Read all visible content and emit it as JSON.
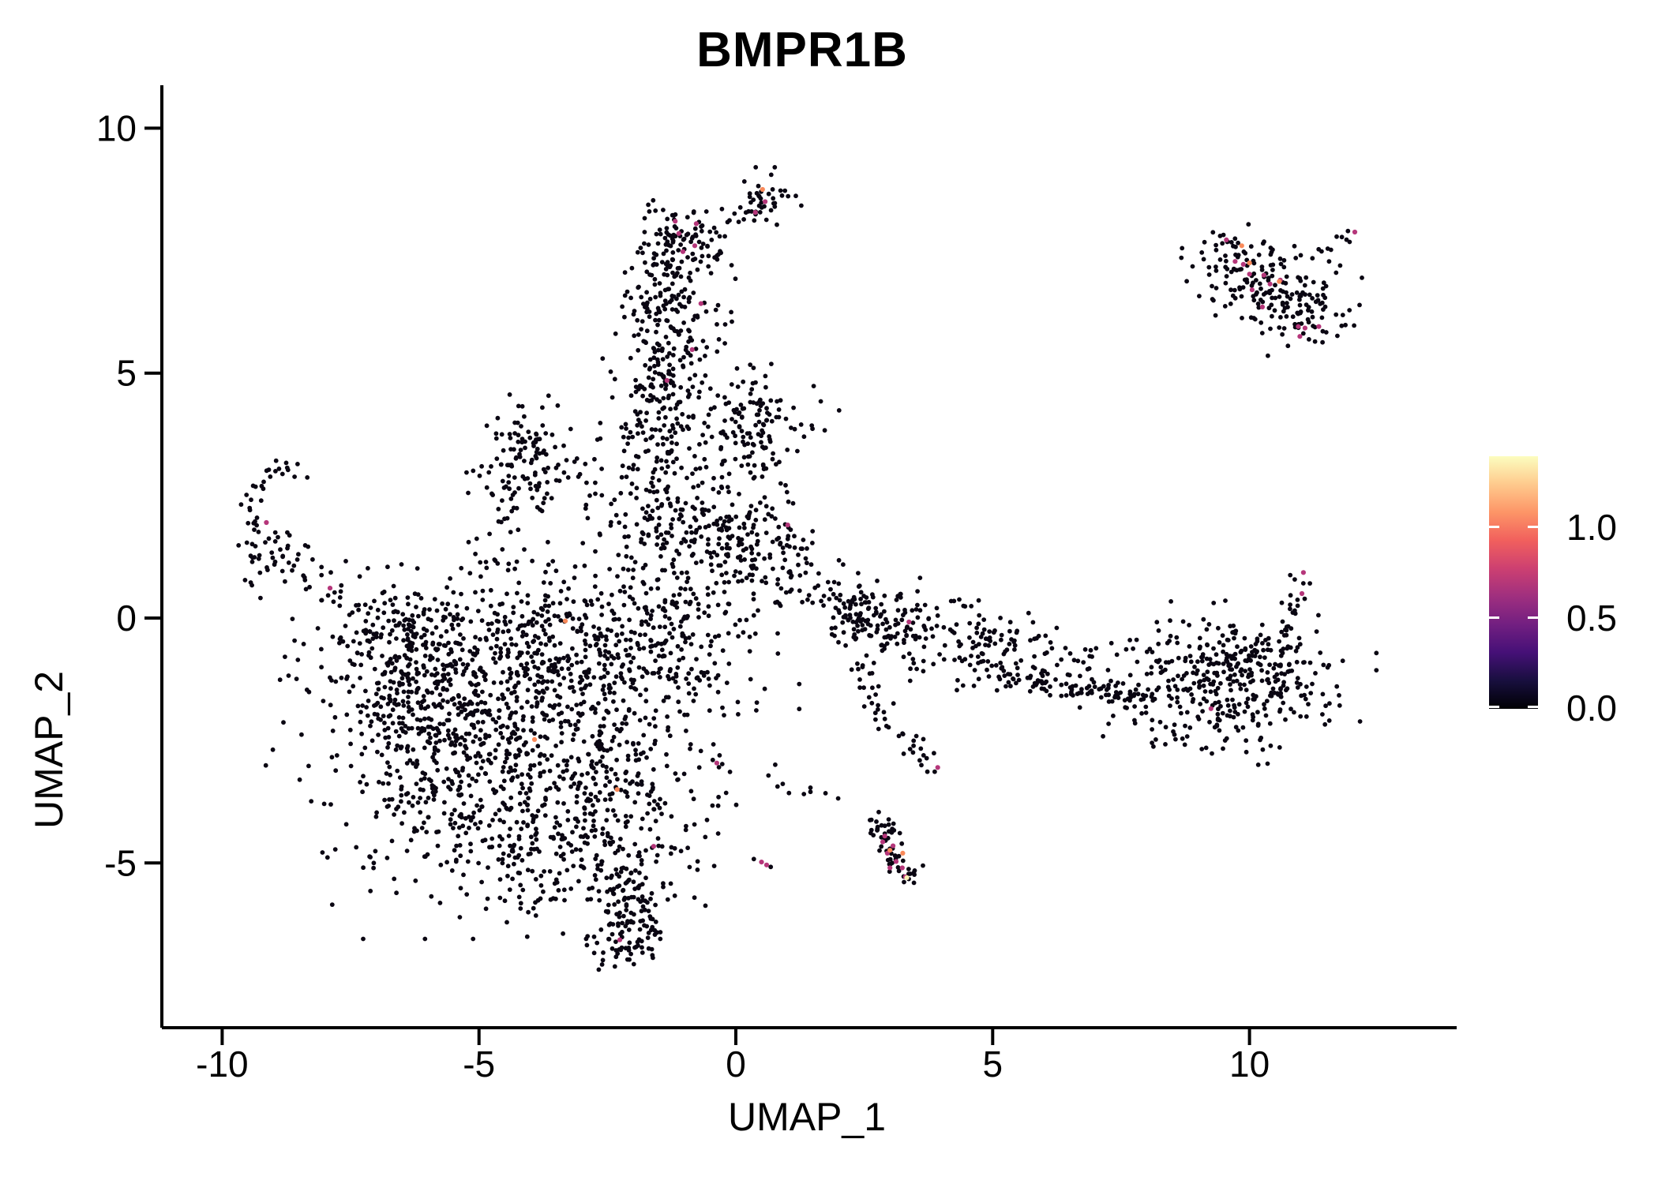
{
  "title": "BMPR1B",
  "axes": {
    "x_label": "UMAP_1",
    "y_label": "UMAP_2",
    "x_ticks": [
      "-10",
      "-5",
      "0",
      "5",
      "10"
    ],
    "y_ticks": [
      "-5",
      "0",
      "5",
      "10"
    ]
  },
  "legend": {
    "tick_labels": [
      "1.0",
      "0.5",
      "0.0"
    ],
    "tick_values": [
      1.0,
      0.5,
      0.0
    ],
    "colormap_name": "magma",
    "colormap": [
      "#000004",
      "#180f3e",
      "#451077",
      "#721f81",
      "#9f2f7f",
      "#cd4071",
      "#f1605d",
      "#fd9567",
      "#feca8d",
      "#fcfdbf"
    ]
  },
  "colors": {
    "point_black": "#0a0612",
    "point_mid": "#b5367a",
    "point_high": "#f98a5a",
    "point_top": "#fbf1b3",
    "axis": "#000000"
  },
  "chart_data": {
    "type": "scatter",
    "title": "BMPR1B",
    "xlabel": "UMAP_1",
    "ylabel": "UMAP_2",
    "xlim": [
      -11.2,
      14.0
    ],
    "ylim": [
      -8.4,
      10.9
    ],
    "x_tick_values": [
      -10,
      -5,
      0,
      5,
      10
    ],
    "y_tick_values": [
      -5,
      0,
      5,
      10
    ],
    "grid": false,
    "legend_position": "right",
    "color_scale": {
      "name": "magma",
      "min": 0.0,
      "max": 1.39,
      "ticks": [
        0.0,
        0.5,
        1.0
      ]
    },
    "clusters": [
      {
        "name": "left-hook-arc",
        "t": "p",
        "pts": [
          [
            -8.4,
            2.95
          ],
          [
            -8.75,
            3.12
          ],
          [
            -9.15,
            2.85
          ],
          [
            -9.42,
            2.3
          ],
          [
            -9.3,
            1.75
          ]
        ],
        "n": 30,
        "j": 0.1
      },
      {
        "name": "left-hook-blob",
        "t": "g",
        "c": [
          -9.05,
          1.32
        ],
        "s": [
          0.4,
          0.28
        ],
        "n": 38
      },
      {
        "name": "left-hook-chain",
        "t": "p",
        "pts": [
          [
            -8.85,
            1.15
          ],
          [
            -8.2,
            0.85
          ],
          [
            -7.6,
            0.35
          ],
          [
            -7.05,
            0.08
          ]
        ],
        "n": 26,
        "j": 0.16
      },
      {
        "name": "mass-bridge",
        "t": "g",
        "c": [
          -6.55,
          -0.4
        ],
        "s": [
          0.45,
          0.38
        ],
        "n": 45
      },
      {
        "name": "mass-core",
        "t": "g",
        "c": [
          -4.8,
          -2.5
        ],
        "s": [
          1.65,
          1.5
        ],
        "n": 820
      },
      {
        "name": "mass-top",
        "t": "g",
        "c": [
          -4.45,
          -0.55
        ],
        "s": [
          1.95,
          0.7
        ],
        "n": 330
      },
      {
        "name": "mass-left",
        "t": "g",
        "c": [
          -6.3,
          -1.9
        ],
        "s": [
          0.7,
          1.1
        ],
        "n": 150
      },
      {
        "name": "mass-right",
        "t": "g",
        "c": [
          -1.6,
          -0.75
        ],
        "s": [
          1.05,
          0.9
        ],
        "n": 250
      },
      {
        "name": "mass-lower",
        "t": "g",
        "c": [
          -2.65,
          -4.0
        ],
        "s": [
          1.05,
          0.95
        ],
        "n": 250
      },
      {
        "name": "mass-fringe",
        "t": "g",
        "c": [
          -4.15,
          -4.95
        ],
        "s": [
          0.85,
          0.55
        ],
        "n": 80
      },
      {
        "name": "mass-tail",
        "t": "p",
        "pts": [
          [
            -2.3,
            -5.1
          ],
          [
            -1.95,
            -5.75
          ],
          [
            -1.85,
            -6.3
          ],
          [
            -2.15,
            -6.85
          ],
          [
            -2.65,
            -6.7
          ]
        ],
        "n": 130,
        "j": 0.28
      },
      {
        "name": "kite",
        "t": "g",
        "c": [
          -4.05,
          3.3
        ],
        "s": [
          0.46,
          0.55
        ],
        "n": 115
      },
      {
        "name": "kite-chain",
        "t": "p",
        "pts": [
          [
            -4.4,
            2.3
          ],
          [
            -4.75,
            1.55
          ],
          [
            -5.0,
            0.95
          ]
        ],
        "n": 20,
        "j": 0.2
      },
      {
        "name": "kite-right",
        "t": "p",
        "pts": [
          [
            -3.4,
            3.2
          ],
          [
            -2.6,
            2.45
          ]
        ],
        "n": 14,
        "j": 0.28
      },
      {
        "name": "flame-knob",
        "t": "g",
        "c": [
          0.58,
          8.5
        ],
        "s": [
          0.28,
          0.26
        ],
        "n": 38
      },
      {
        "name": "flame-wisp",
        "t": "p",
        "pts": [
          [
            0.3,
            8.4
          ],
          [
            -0.25,
            8.05
          ],
          [
            -0.48,
            7.85
          ]
        ],
        "n": 12,
        "j": 0.12
      },
      {
        "name": "flame-upper",
        "t": "g",
        "c": [
          -1.05,
          7.7
        ],
        "s": [
          0.48,
          0.42
        ],
        "n": 105
      },
      {
        "name": "flame-neck",
        "t": "g",
        "c": [
          -1.35,
          6.45
        ],
        "s": [
          0.4,
          0.52
        ],
        "n": 85
      },
      {
        "name": "flame-column",
        "t": "g",
        "c": [
          -1.42,
          5.05
        ],
        "s": [
          0.45,
          0.72
        ],
        "n": 135
      },
      {
        "name": "flame-flare",
        "t": "g",
        "c": [
          -1.35,
          3.6
        ],
        "s": [
          0.58,
          0.58
        ],
        "n": 95
      },
      {
        "name": "flame-lower",
        "t": "p",
        "pts": [
          [
            -1.5,
            2.95
          ],
          [
            -1.35,
            2.2
          ],
          [
            -1.2,
            1.6
          ]
        ],
        "n": 30,
        "j": 0.4
      },
      {
        "name": "flame-right-sparse",
        "t": "g",
        "c": [
          -0.6,
          5.9
        ],
        "s": [
          0.5,
          0.6
        ],
        "n": 18
      },
      {
        "name": "east-blob",
        "t": "g",
        "c": [
          0.38,
          3.65
        ],
        "s": [
          0.5,
          0.44
        ],
        "n": 95
      },
      {
        "name": "east-blob-top",
        "t": "g",
        "c": [
          0.52,
          4.55
        ],
        "s": [
          0.42,
          0.38
        ],
        "n": 26
      },
      {
        "name": "delta",
        "t": "g",
        "c": [
          -0.8,
          1.65
        ],
        "s": [
          1.12,
          0.72
        ],
        "n": 230
      },
      {
        "name": "delta-east",
        "t": "g",
        "c": [
          0.42,
          1.35
        ],
        "s": [
          0.6,
          0.55
        ],
        "n": 90
      },
      {
        "name": "delta-band-bridge",
        "t": "p",
        "pts": [
          [
            1.3,
            0.75
          ],
          [
            1.85,
            0.45
          ],
          [
            2.35,
            0.22
          ]
        ],
        "n": 22,
        "j": 0.28
      },
      {
        "name": "band-tip",
        "t": "g",
        "c": [
          2.42,
          0.12
        ],
        "s": [
          0.3,
          0.28
        ],
        "n": 40
      },
      {
        "name": "band-left",
        "t": "g",
        "c": [
          3.1,
          -0.15
        ],
        "s": [
          0.66,
          0.46
        ],
        "n": 135
      },
      {
        "name": "band-ring",
        "t": "g",
        "c": [
          4.95,
          -0.6
        ],
        "s": [
          0.48,
          0.4
        ],
        "n": 75
      },
      {
        "name": "band-thin",
        "t": "p",
        "pts": [
          [
            5.1,
            -1.1
          ],
          [
            6.5,
            -1.45
          ],
          [
            8.0,
            -1.6
          ]
        ],
        "n": 95,
        "j": 0.13
      },
      {
        "name": "band-upper-scatter",
        "t": "p",
        "pts": [
          [
            5.6,
            -0.65
          ],
          [
            7.4,
            -1.1
          ]
        ],
        "n": 35,
        "j": 0.28
      },
      {
        "name": "band-right",
        "t": "g",
        "c": [
          9.5,
          -1.4
        ],
        "s": [
          1.1,
          0.65
        ],
        "n": 290
      },
      {
        "name": "band-right-dense",
        "t": "g",
        "c": [
          10.35,
          -1.15
        ],
        "s": [
          0.5,
          0.45
        ],
        "n": 80
      },
      {
        "name": "band-top-scatter",
        "t": "p",
        "pts": [
          [
            8.0,
            -0.55
          ],
          [
            10.6,
            -0.75
          ]
        ],
        "n": 30,
        "j": 0.28
      },
      {
        "name": "band-arm-up",
        "t": "p",
        "pts": [
          [
            10.6,
            -0.5
          ],
          [
            10.9,
            0.3
          ],
          [
            11.0,
            0.8
          ]
        ],
        "n": 22,
        "j": 0.12
      },
      {
        "name": "band-below-scatter",
        "t": "p",
        "pts": [
          [
            8.0,
            -2.45
          ],
          [
            10.3,
            -2.8
          ]
        ],
        "n": 16,
        "j": 0.22
      },
      {
        "name": "band-down-chain",
        "t": "p",
        "pts": [
          [
            2.5,
            -1.05
          ],
          [
            2.7,
            -1.9
          ],
          [
            3.4,
            -2.6
          ],
          [
            3.93,
            -3.05
          ]
        ],
        "n": 40,
        "j": 0.15
      },
      {
        "name": "south-streak",
        "t": "p",
        "pts": [
          [
            2.7,
            -4.0
          ],
          [
            2.95,
            -4.55
          ],
          [
            3.2,
            -5.0
          ],
          [
            3.42,
            -5.35
          ]
        ],
        "n": 58,
        "j": 0.12
      },
      {
        "name": "lone-pair",
        "t": "pts",
        "pts": [
          [
            0.35,
            -4.92
          ],
          [
            0.68,
            -5.08
          ]
        ]
      },
      {
        "name": "diag-chain",
        "t": "p",
        "pts": [
          [
            -0.75,
            -2.7
          ],
          [
            0.2,
            -3.1
          ],
          [
            0.9,
            -3.3
          ],
          [
            1.6,
            -3.42
          ],
          [
            2.2,
            -3.5
          ]
        ],
        "n": 16,
        "j": 0.18
      },
      {
        "name": "topright-upper",
        "t": "g",
        "c": [
          9.95,
          7.15
        ],
        "s": [
          0.5,
          0.36
        ],
        "n": 85
      },
      {
        "name": "topright-lower",
        "t": "g",
        "c": [
          10.95,
          6.35
        ],
        "s": [
          0.56,
          0.46
        ],
        "n": 115
      },
      {
        "name": "topright-wisp",
        "t": "p",
        "pts": [
          [
            9.32,
            7.78
          ],
          [
            9.8,
            7.62
          ]
        ],
        "n": 11,
        "j": 0.08
      },
      {
        "name": "topright-arm",
        "t": "p",
        "pts": [
          [
            11.35,
            7.45
          ],
          [
            11.75,
            7.7
          ],
          [
            12.0,
            7.85
          ]
        ],
        "n": 9,
        "j": 0.08
      },
      {
        "name": "topright-scatter",
        "t": "pts",
        "pts": [
          [
            10.9,
            7.35
          ],
          [
            11.55,
            7.28
          ],
          [
            10.45,
            7.52
          ],
          [
            11.1,
            6.95
          ]
        ]
      },
      {
        "name": "mid-singles",
        "t": "pts",
        "pts": [
          [
            2.01,
            4.24
          ],
          [
            0.28,
            5.17
          ],
          [
            -0.08,
            4.77
          ]
        ]
      }
    ],
    "highlighted_points": [
      {
        "level": "mid",
        "color": "#b5367a",
        "pts": [
          [
            -9.14,
            1.95
          ],
          [
            -7.9,
            0.61
          ],
          [
            -1.6,
            -4.66
          ],
          [
            -2.26,
            -6.57
          ],
          [
            -0.37,
            -2.96
          ],
          [
            1.01,
            1.9
          ],
          [
            3.37,
            -0.08
          ],
          [
            9.25,
            -1.85
          ],
          [
            11.05,
            0.93
          ],
          [
            11.02,
            0.5
          ],
          [
            3.93,
            -3.05
          ],
          [
            0.5,
            -4.98
          ],
          [
            0.6,
            -5.04
          ],
          [
            0.57,
            8.5
          ],
          [
            0.38,
            8.28
          ],
          [
            -1.18,
            8.1
          ],
          [
            -0.77,
            8.05
          ],
          [
            -1.11,
            7.85
          ],
          [
            -0.8,
            7.6
          ],
          [
            -1.03,
            7.48
          ],
          [
            -0.68,
            6.42
          ],
          [
            -0.85,
            5.48
          ],
          [
            -1.34,
            4.85
          ],
          [
            2.86,
            -4.57
          ],
          [
            2.95,
            -4.8
          ],
          [
            3.06,
            -4.65
          ],
          [
            3.12,
            -4.97
          ],
          [
            3.0,
            -5.1
          ],
          [
            3.24,
            -5.1
          ],
          [
            3.3,
            -5.28
          ],
          [
            2.9,
            -4.45
          ],
          [
            9.55,
            7.72
          ],
          [
            9.72,
            7.28
          ],
          [
            9.88,
            7.22
          ],
          [
            10.0,
            7.02
          ],
          [
            10.28,
            7.0
          ],
          [
            10.4,
            6.82
          ],
          [
            10.6,
            6.9
          ],
          [
            10.25,
            6.35
          ],
          [
            10.95,
            5.95
          ],
          [
            11.08,
            5.92
          ],
          [
            10.98,
            5.75
          ],
          [
            11.35,
            5.95
          ],
          [
            10.05,
            6.7
          ],
          [
            12.05,
            7.88
          ]
        ]
      },
      {
        "level": "high",
        "color": "#f98a5a",
        "pts": [
          [
            -3.32,
            -0.06
          ],
          [
            -3.92,
            -2.48
          ],
          [
            -2.31,
            -3.5
          ],
          [
            0.52,
            8.75
          ],
          [
            10.0,
            7.25
          ],
          [
            10.58,
            6.87
          ],
          [
            9.85,
            7.6
          ],
          [
            3.0,
            -4.74
          ],
          [
            3.25,
            -4.8
          ]
        ]
      },
      {
        "level": "top",
        "color": "#fbf1b3",
        "pts": [
          [
            3.33,
            -5.3
          ]
        ]
      }
    ]
  }
}
